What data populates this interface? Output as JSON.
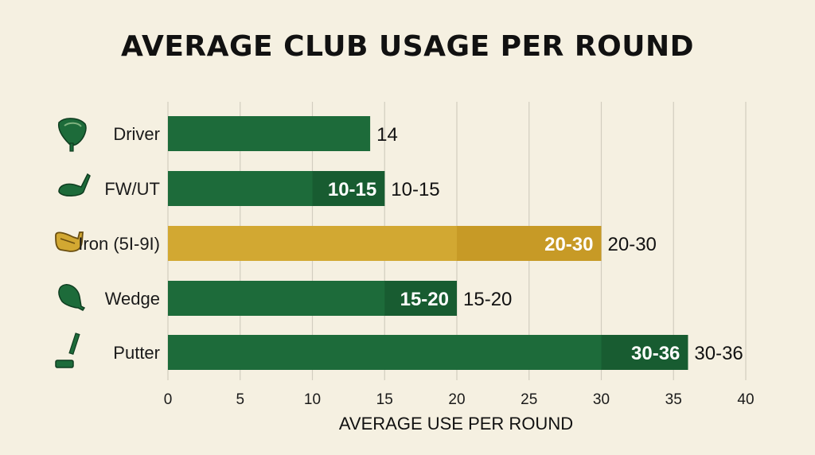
{
  "chart_data": {
    "type": "bar",
    "orientation": "horizontal",
    "title": "AVERAGE CLUB USAGE PER ROUND",
    "xlabel": "AVERAGE USE PER ROUND",
    "ylabel": "",
    "xlim": [
      0,
      40
    ],
    "xticks": [
      0,
      5,
      10,
      15,
      20,
      25,
      30,
      35,
      40
    ],
    "grid": true,
    "categories": [
      "Driver",
      "FW/UT",
      "Iron (5I-9I)",
      "Wedge",
      "Putter"
    ],
    "icons": [
      "driver-icon",
      "fairway-wood-icon",
      "iron-icon",
      "wedge-icon",
      "putter-icon"
    ],
    "ranges": [
      {
        "low": 14,
        "high": 14
      },
      {
        "low": 10,
        "high": 15
      },
      {
        "low": 20,
        "high": 30
      },
      {
        "low": 15,
        "high": 20
      },
      {
        "low": 30,
        "high": 36
      }
    ],
    "inside_labels": [
      "",
      "10-15",
      "20-30",
      "15-20",
      "30-36"
    ],
    "outside_labels": [
      "14",
      "10-15",
      "20-30",
      "15-20",
      "30-36"
    ],
    "bar_colors": [
      "#1d6b3a",
      "#1d6b3a",
      "#d2a832",
      "#1d6b3a",
      "#1d6b3a"
    ],
    "range_colors": [
      "#185c31",
      "#185c31",
      "#c79a26",
      "#185c31",
      "#185c31"
    ],
    "colors": {
      "background": "#f5f0e1",
      "grid": "#d2cdbf",
      "green": "#1d6b3a",
      "gold": "#d2a832"
    }
  }
}
